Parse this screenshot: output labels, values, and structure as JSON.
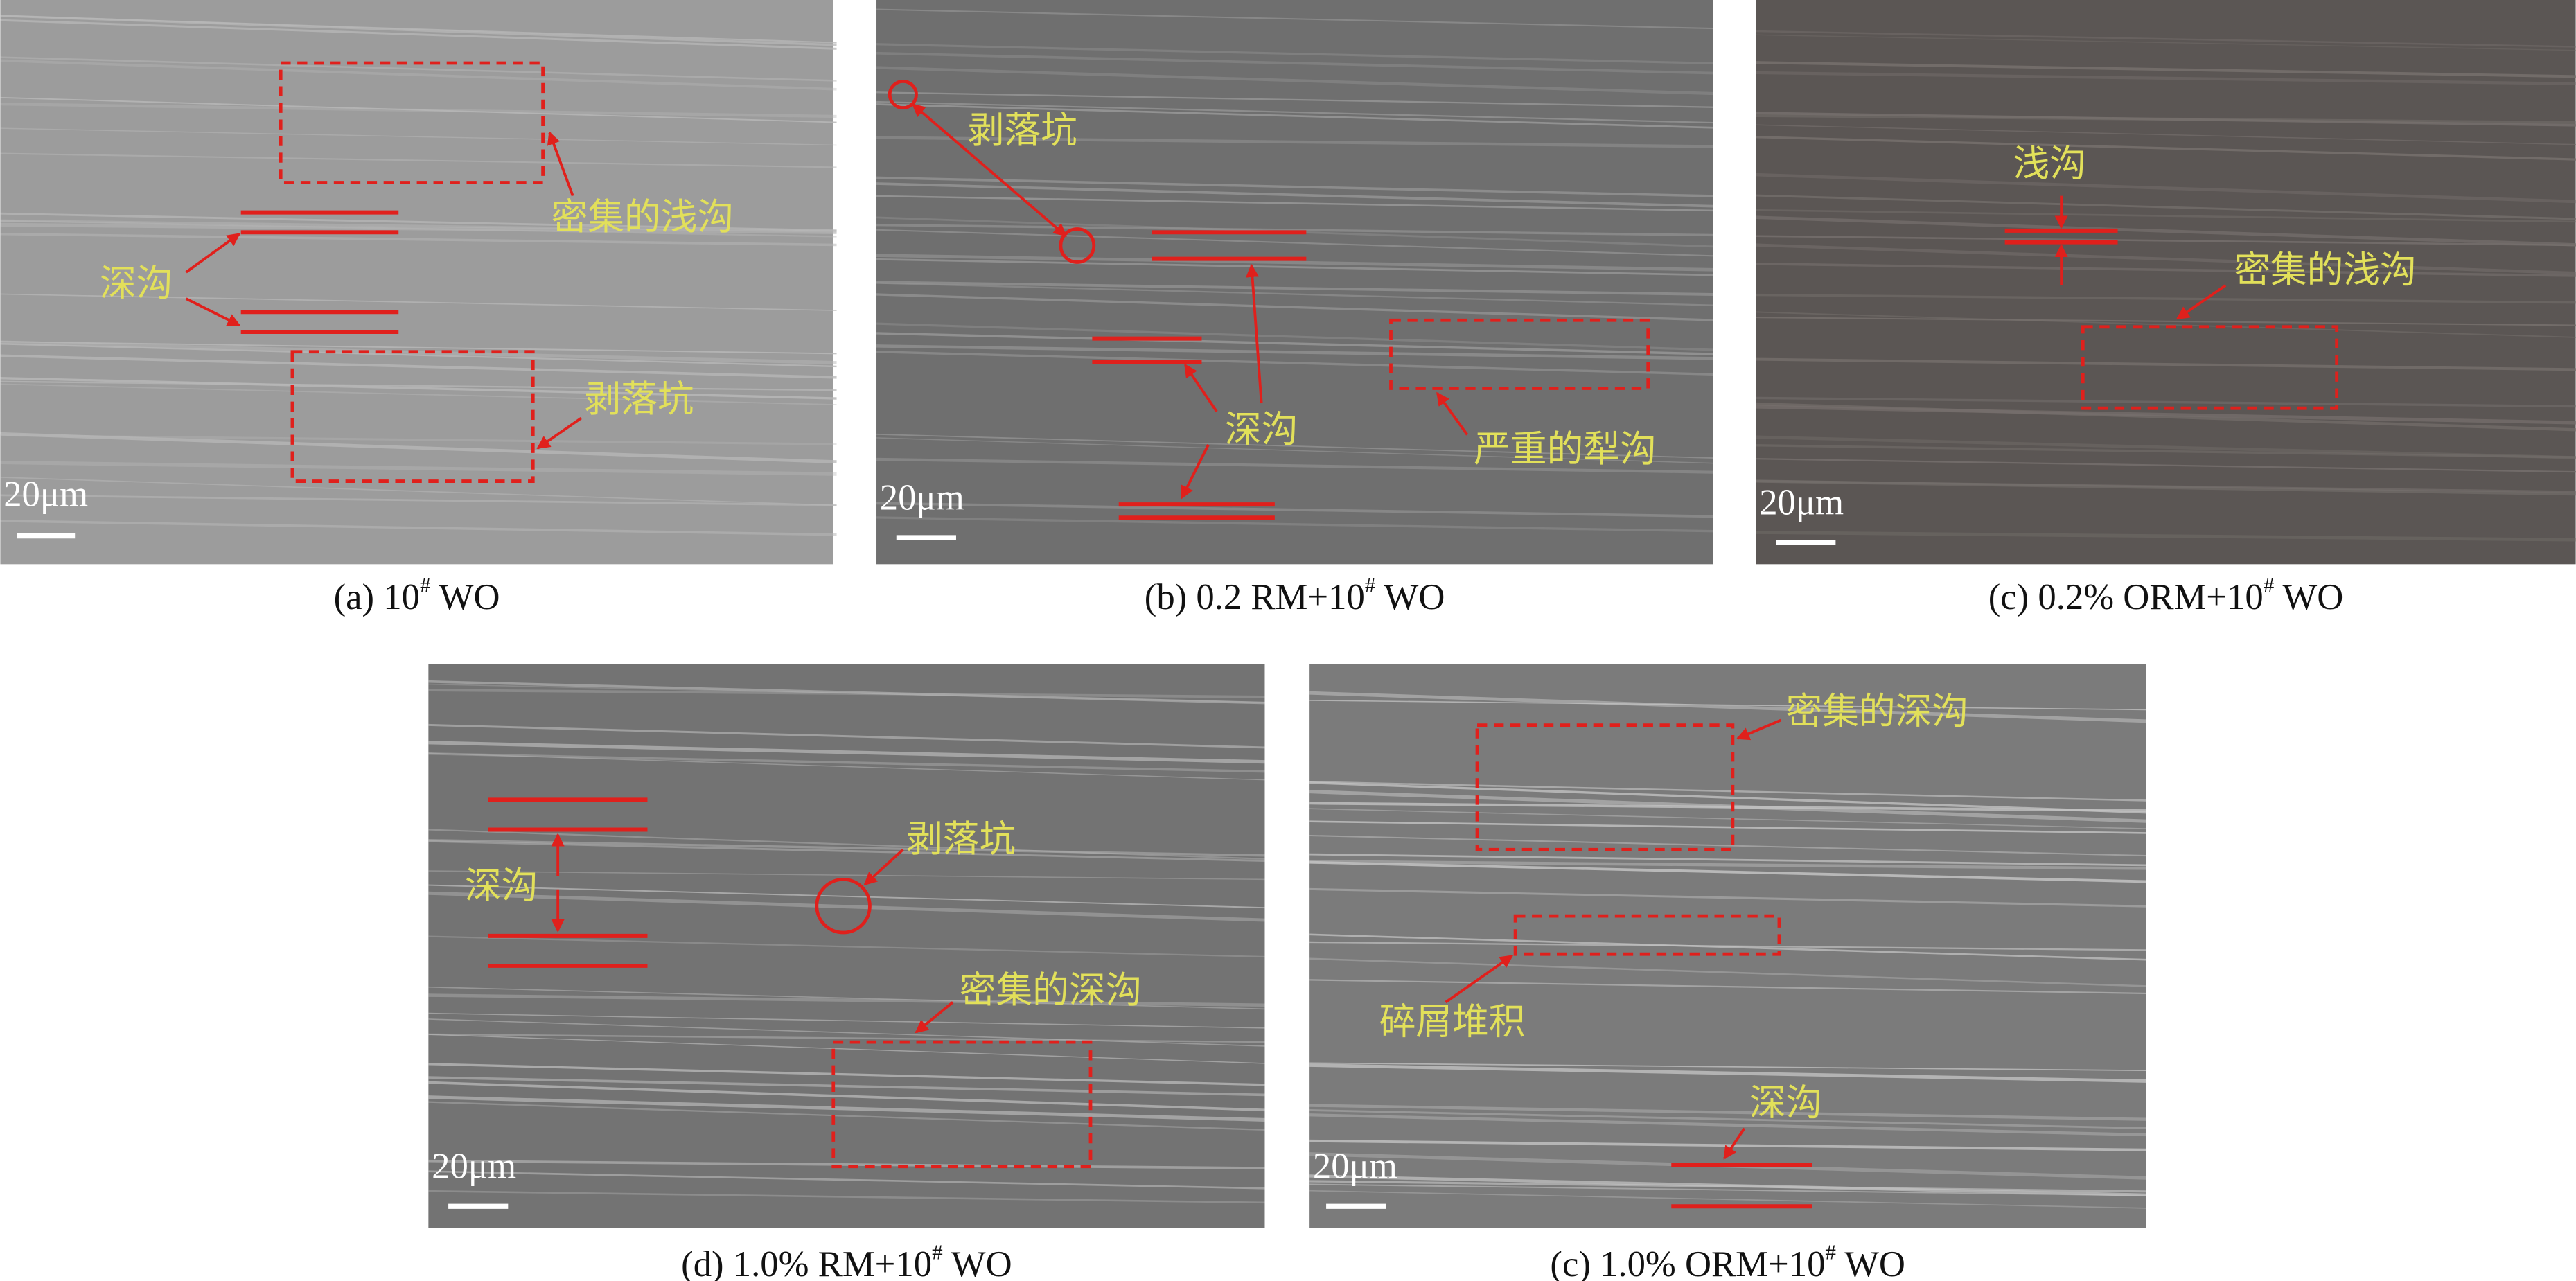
{
  "panels": [
    {
      "labels": [
        "密集的浅沟",
        "深沟",
        "剥落坑"
      ],
      "scale_bar": "20μm",
      "caption": {
        "pre": "(a) 10",
        "sup": "#",
        "post": " WO"
      }
    },
    {
      "labels": [
        "剥落坑",
        "深沟",
        "严重的犁沟"
      ],
      "scale_bar": "20μm",
      "caption": {
        "pre": "(b) 0.2 RM+10",
        "sup": "#",
        "post": " WO"
      }
    },
    {
      "labels": [
        "浅沟",
        "密集的浅沟"
      ],
      "scale_bar": "20μm",
      "caption": {
        "pre": "(c) 0.2% ORM+10",
        "sup": "#",
        "post": " WO"
      }
    },
    {
      "labels": [
        "剥落坑",
        "深沟",
        "密集的深沟"
      ],
      "scale_bar": "20μm",
      "caption": {
        "pre": "(d) 1.0% RM+10",
        "sup": "#",
        "post": " WO"
      }
    },
    {
      "labels": [
        "密集的深沟",
        "碎屑堆积",
        "深沟"
      ],
      "scale_bar": "20μm",
      "caption": {
        "pre": "(c) 1.0% ORM+10",
        "sup": "#",
        "post": " WO"
      }
    }
  ]
}
